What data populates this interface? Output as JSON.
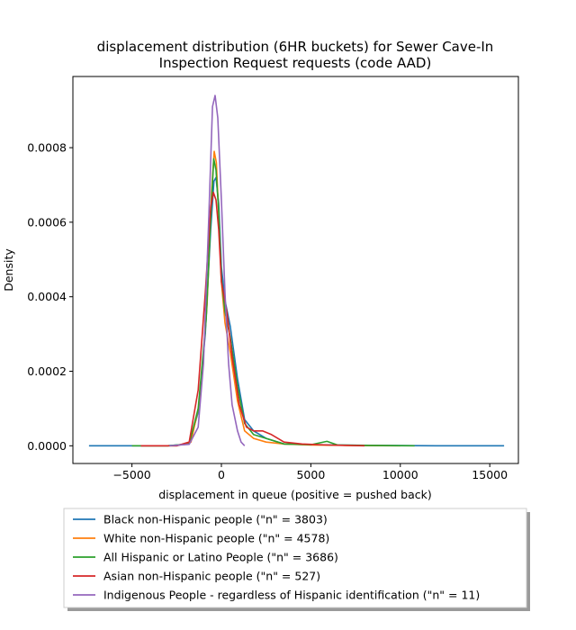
{
  "chart_data": {
    "type": "line",
    "title_line1": "displacement distribution (6HR buckets) for Sewer Cave-In",
    "title_line2": "Inspection Request requests (code AAD)",
    "xlabel": "displacement in queue (positive = pushed back)",
    "ylabel": "Density",
    "xlim": [
      -8300,
      16600
    ],
    "ylim": [
      -4.75e-05,
      0.000991
    ],
    "x_ticks": [
      -5000,
      0,
      5000,
      10000,
      15000
    ],
    "x_tick_labels": [
      "−5000",
      "0",
      "5000",
      "10000",
      "15000"
    ],
    "y_ticks": [
      0.0,
      0.0002,
      0.0004,
      0.0006,
      0.0008
    ],
    "y_tick_labels": [
      "0.0000",
      "0.0002",
      "0.0004",
      "0.0006",
      "0.0008"
    ],
    "grid": false,
    "legend_position": "bottom-center (outside plot)",
    "series": [
      {
        "name": "Black non-Hispanic people (\"n\" = 3803)",
        "color": "#1f77b4",
        "x": [
          -7400,
          -3000,
          -1800,
          -1300,
          -900,
          -600,
          -420,
          -300,
          -150,
          0,
          200,
          500,
          900,
          1300,
          1800,
          2500,
          3500,
          5000,
          6500,
          9000,
          12000,
          15800
        ],
        "y": [
          0.0,
          0.0,
          5e-06,
          9e-05,
          0.0003,
          0.00058,
          0.00071,
          0.00072,
          0.00065,
          0.00048,
          0.00039,
          0.00032,
          0.00018,
          7e-05,
          4e-05,
          2e-05,
          5e-06,
          3e-06,
          2e-06,
          1e-06,
          0.0,
          0.0
        ]
      },
      {
        "name": "White non-Hispanic people (\"n\" = 4578)",
        "color": "#ff7f0e",
        "x": [
          -4500,
          -2500,
          -1700,
          -1200,
          -800,
          -550,
          -400,
          -280,
          -150,
          0,
          200,
          500,
          900,
          1300,
          1800,
          2500,
          3500,
          5000,
          7000,
          10000
        ],
        "y": [
          0.0,
          0.0,
          1e-05,
          0.00012,
          0.00038,
          0.00068,
          0.00079,
          0.00076,
          0.00062,
          0.00044,
          0.00033,
          0.00025,
          0.00012,
          4e-05,
          2e-05,
          1e-05,
          5e-06,
          2e-06,
          1e-06,
          0.0
        ]
      },
      {
        "name": "All Hispanic or Latino People (\"n\" = 3686)",
        "color": "#2ca02c",
        "x": [
          -5000,
          -3000,
          -1800,
          -1300,
          -850,
          -580,
          -430,
          -300,
          -150,
          0,
          200,
          500,
          900,
          1300,
          1800,
          2500,
          3500,
          5000,
          5900,
          6500,
          8000,
          10800
        ],
        "y": [
          0.0,
          0.0,
          5e-06,
          0.0001,
          0.00034,
          0.00063,
          0.00077,
          0.00074,
          0.00063,
          0.00045,
          0.00036,
          0.00029,
          0.00016,
          6e-05,
          3e-05,
          2e-05,
          5e-06,
          3e-06,
          1.2e-05,
          2e-06,
          1e-06,
          0.0
        ]
      },
      {
        "name": "Asian non-Hispanic people (\"n\" = 527)",
        "color": "#d62728",
        "x": [
          -4500,
          -2500,
          -1800,
          -1300,
          -900,
          -600,
          -450,
          -300,
          -150,
          0,
          300,
          600,
          1000,
          1400,
          1800,
          2300,
          2800,
          3500,
          4500,
          6000,
          8000
        ],
        "y": [
          0.0,
          0.0,
          1e-05,
          0.00015,
          0.00041,
          0.00064,
          0.00068,
          0.00066,
          0.00058,
          0.00044,
          0.00036,
          0.00024,
          0.00011,
          5e-05,
          4e-05,
          4e-05,
          3e-05,
          1e-05,
          5e-06,
          2e-06,
          0.0
        ]
      },
      {
        "name": "Indigenous People - regardless of Hispanic identification (\"n\" = 11)",
        "color": "#9467bd",
        "x": [
          -2900,
          -1800,
          -1300,
          -1000,
          -700,
          -500,
          -350,
          -200,
          0,
          200,
          400,
          600,
          900,
          1100,
          1300
        ],
        "y": [
          0.0,
          4e-06,
          5e-05,
          0.00022,
          0.00062,
          0.00091,
          0.00094,
          0.00088,
          0.00066,
          0.00041,
          0.00022,
          0.00011,
          4e-05,
          1e-05,
          0.0
        ]
      }
    ]
  }
}
